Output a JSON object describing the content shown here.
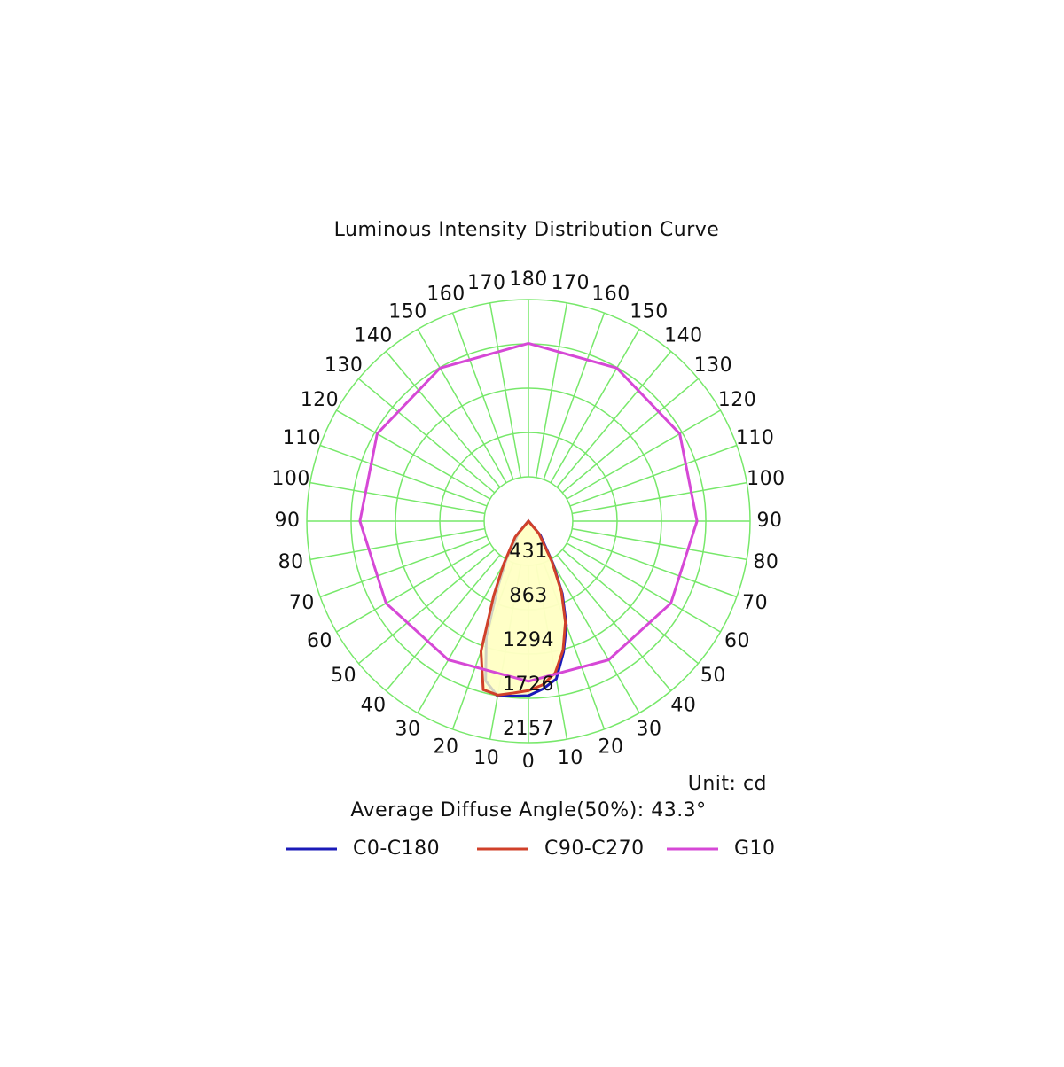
{
  "chart_data": {
    "type": "polar",
    "title": "Luminous Intensity Distribution Curve",
    "unit_label": "Unit: cd",
    "annotation": "Average Diffuse Angle(50%): 43.3°",
    "rlim": [
      0,
      2157
    ],
    "rticks": [
      431,
      863,
      1294,
      1726,
      2157
    ],
    "angle_ticks": [
      0,
      10,
      20,
      30,
      40,
      50,
      60,
      70,
      80,
      90,
      100,
      110,
      120,
      130,
      140,
      150,
      160,
      170,
      180
    ],
    "grid_color": "#77e86a",
    "fill": "#ffffc4",
    "series": [
      {
        "name": "C0-C180",
        "color": "#1a1ab8",
        "x": [
          -90,
          -40,
          -30,
          -25,
          -20,
          -15,
          -10,
          -5,
          0,
          5,
          10,
          15,
          20,
          25,
          30,
          40,
          90
        ],
        "values": [
          0,
          150,
          430,
          700,
          1200,
          1610,
          1730,
          1710,
          1700,
          1640,
          1560,
          1320,
          1080,
          780,
          480,
          180,
          0
        ]
      },
      {
        "name": "C90-C270",
        "color": "#d0402a",
        "x": [
          -90,
          -40,
          -30,
          -25,
          -20,
          -15,
          -10,
          -5,
          0,
          5,
          10,
          15,
          20,
          25,
          30,
          40,
          90
        ],
        "values": [
          0,
          200,
          480,
          800,
          1350,
          1700,
          1720,
          1680,
          1650,
          1600,
          1500,
          1300,
          1050,
          760,
          460,
          160,
          0
        ]
      },
      {
        "name": "G10",
        "color": "#d648d6",
        "x": [
          -180,
          -150,
          -120,
          -90,
          -60,
          -30,
          0,
          30,
          60,
          90,
          120,
          150,
          180
        ],
        "values": [
          1730,
          1720,
          1700,
          1640,
          1600,
          1560,
          1560,
          1560,
          1600,
          1640,
          1700,
          1720,
          1730
        ]
      }
    ]
  }
}
